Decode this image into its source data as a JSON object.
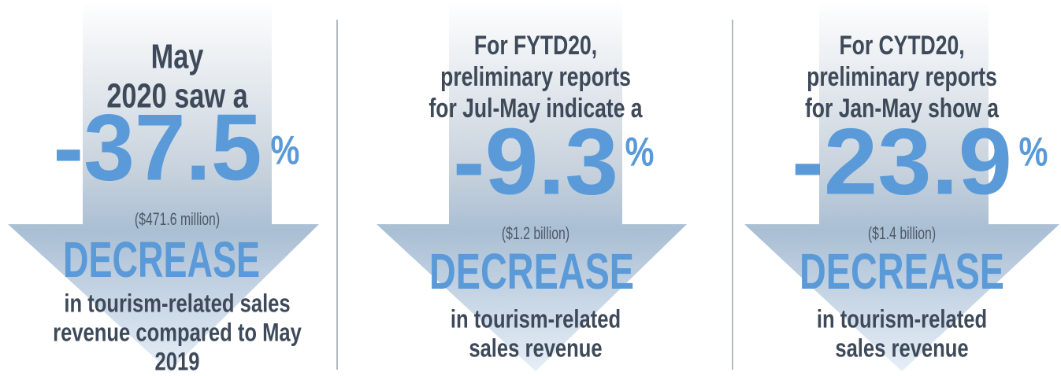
{
  "panels": [
    {
      "intro": [
        "May",
        "2020 saw a"
      ],
      "figure": "-37.5",
      "unit": "%",
      "amount": "($471.6 million)",
      "label": "DECREASE",
      "outro": [
        "in tourism-related sales",
        "revenue compared to May",
        "2019"
      ]
    },
    {
      "intro": [
        "For FYTD20,",
        "preliminary reports",
        "for Jul-May indicate a"
      ],
      "figure": "-9.3",
      "unit": "%",
      "amount": "($1.2 billion)",
      "label": "DECREASE",
      "outro": [
        "in tourism-related",
        "sales revenue"
      ]
    },
    {
      "intro": [
        "For CYTD20,",
        "preliminary reports",
        "for Jan-May show a"
      ],
      "figure": "-23.9",
      "unit": "%",
      "amount": "($1.4 billion)",
      "label": "DECREASE",
      "outro": [
        "in tourism-related",
        "sales revenue"
      ]
    }
  ]
}
